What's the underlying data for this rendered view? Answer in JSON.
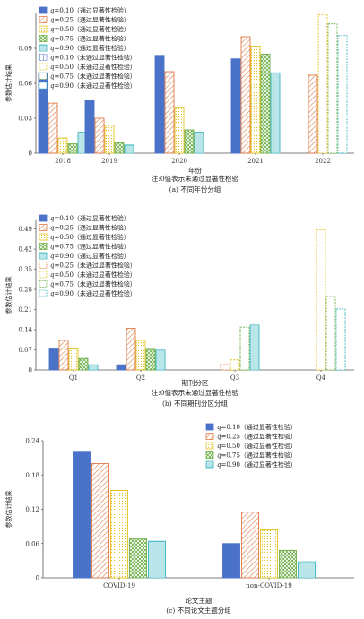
{
  "chart_data": [
    {
      "type": "bar",
      "xlabel": "年份",
      "ylabel": "参数估计结果",
      "note": "注:0值表示未通过显著性检验",
      "caption": "(a) 不同年份分组",
      "categories": [
        "2018",
        "2019",
        "2020",
        "2021",
        "2022"
      ],
      "ylim": [
        0,
        0.12
      ],
      "yticks": [
        "0",
        "0.03",
        "0.06",
        "0.09"
      ],
      "legend": [
        "q=0.10（通过显著性检验）",
        "q=0.25（通过显著性检验）",
        "q=0.50（通过显著性检验）",
        "q=0.75（通过显著性检验）",
        "q=0.90（通过显著性检验）",
        "q=0.10（未通过显著性检验）",
        "q=0.50（未通过显著性检验）",
        "q=0.75（未通过显著性检验）",
        "q=0.90（未通过显著性检验）"
      ],
      "series": [
        {
          "q": "0.10",
          "values": [
            0.069,
            0.045,
            0.084,
            0.081,
            0
          ],
          "significant": [
            true,
            true,
            true,
            true,
            false
          ]
        },
        {
          "q": "0.25",
          "values": [
            0.043,
            0.03,
            0.07,
            0.1,
            0.067
          ],
          "significant": [
            true,
            true,
            true,
            true,
            true
          ]
        },
        {
          "q": "0.50",
          "values": [
            0.013,
            0.024,
            0.039,
            0.092,
            0.119
          ],
          "significant": [
            true,
            true,
            true,
            true,
            false
          ]
        },
        {
          "q": "0.75",
          "values": [
            0.008,
            0.009,
            0.02,
            0.085,
            0.111
          ],
          "significant": [
            true,
            true,
            true,
            true,
            false
          ]
        },
        {
          "q": "0.90",
          "values": [
            0.018,
            0.007,
            0.018,
            0.069,
            0.101
          ],
          "significant": [
            true,
            true,
            true,
            true,
            false
          ]
        }
      ]
    },
    {
      "type": "bar",
      "xlabel": "期刊分区",
      "ylabel": "参数估计结果",
      "note": "注:0值表示未通过显著性检验",
      "caption": "(b) 不同期刊分区分组",
      "categories": [
        "Q1",
        "Q2",
        "Q3",
        "Q4"
      ],
      "ylim": [
        0,
        0.52
      ],
      "yticks": [
        "0",
        "0.07",
        "0.14",
        "0.21",
        "0.28",
        "0.35",
        "0.42",
        "0.49"
      ],
      "legend": [
        "q=0.10（通过显著性检验）",
        "q=0.25（通过显著性检验）",
        "q=0.50（通过显著性检验）",
        "q=0.75（通过显著性检验）",
        "q=0.90（通过显著性检验）",
        "q=0.25（未通过显著性检验）",
        "q=0.50（未通过显著性检验）",
        "q=0.75（未通过显著性检验）",
        "q=0.90（未通过显著性检验）"
      ],
      "series": [
        {
          "q": "0.10",
          "values": [
            0.073,
            0.018,
            0,
            0
          ],
          "significant": [
            true,
            true,
            true,
            true
          ]
        },
        {
          "q": "0.25",
          "values": [
            0.103,
            0.145,
            0.019,
            0
          ],
          "significant": [
            true,
            true,
            false,
            true
          ]
        },
        {
          "q": "0.50",
          "values": [
            0.073,
            0.103,
            0.035,
            0.487
          ],
          "significant": [
            true,
            true,
            false,
            false
          ]
        },
        {
          "q": "0.75",
          "values": [
            0.04,
            0.072,
            0.149,
            0.255
          ],
          "significant": [
            true,
            true,
            false,
            false
          ]
        },
        {
          "q": "0.90",
          "values": [
            0.018,
            0.069,
            0.156,
            0.212
          ],
          "significant": [
            true,
            true,
            true,
            false
          ]
        }
      ]
    },
    {
      "type": "bar",
      "xlabel": "论文主题",
      "ylabel": "参数估计结果",
      "caption": "(c) 不同论文主题分组",
      "categories": [
        "COVID-19",
        "non-COVID-19"
      ],
      "ylim": [
        0,
        0.24
      ],
      "yticks": [
        "0",
        "0.06",
        "0.12",
        "0.18",
        "0.24"
      ],
      "legend": [
        "q=0.10（通过显著性检验）",
        "q=0.25（通过显著性检验）",
        "q=0.50（通过显著性检验）",
        "q=0.75（通过显著性检验）",
        "q=0.90（通过显著性检验）"
      ],
      "series": [
        {
          "q": "0.10",
          "values": [
            0.22,
            0.06
          ],
          "significant": [
            true,
            true
          ]
        },
        {
          "q": "0.25",
          "values": [
            0.2,
            0.115
          ],
          "significant": [
            true,
            true
          ]
        },
        {
          "q": "0.50",
          "values": [
            0.153,
            0.084
          ],
          "significant": [
            true,
            true
          ]
        },
        {
          "q": "0.75",
          "values": [
            0.068,
            0.048
          ],
          "significant": [
            true,
            true
          ]
        },
        {
          "q": "0.90",
          "values": [
            0.064,
            0.028
          ],
          "significant": [
            true,
            true
          ]
        }
      ]
    }
  ],
  "colors": {
    "q0.10": "#4a72c8",
    "q0.25": "#e07b46",
    "q0.50": "#e3c21c",
    "q0.75": "#6cae45",
    "q0.90": "#3bb6c0"
  }
}
